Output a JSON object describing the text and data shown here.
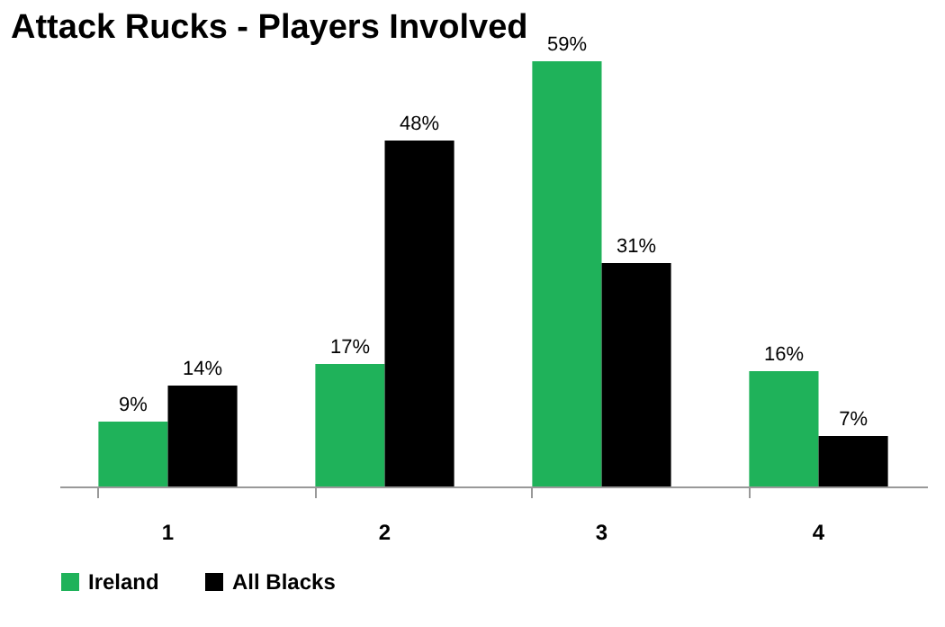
{
  "chart_data": {
    "type": "bar",
    "title": "Attack Rucks - Players Involved",
    "categories": [
      "1",
      "2",
      "3",
      "4"
    ],
    "series": [
      {
        "name": "Ireland",
        "color": "#1fb25a",
        "values": [
          9,
          17,
          59,
          16
        ],
        "value_labels": [
          "9%",
          "17%",
          "59%",
          "16%"
        ]
      },
      {
        "name": "All Blacks",
        "color": "#000000",
        "values": [
          14,
          48,
          31,
          7
        ],
        "value_labels": [
          "14%",
          "48%",
          "31%",
          "7%"
        ]
      }
    ],
    "legend": "bottom",
    "grid": false
  }
}
